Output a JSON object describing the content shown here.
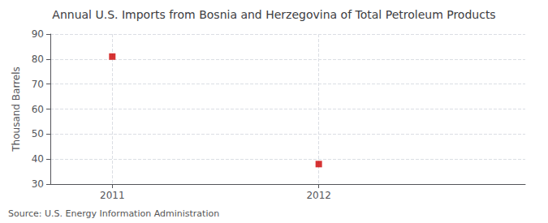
{
  "chart_data": {
    "type": "scatter",
    "title": "Annual U.S. Imports from Bosnia and Herzegovina of Total Petroleum Products",
    "ylabel": "Thousand Barrels",
    "annotation": "Source: U.S. Energy Information Administration",
    "x": [
      2011,
      2012
    ],
    "values": [
      81,
      38
    ],
    "color": "#cc0000",
    "marker": "square",
    "xlim": [
      2010.7,
      2013.0
    ],
    "xticks": [
      2011,
      2012
    ],
    "ylim": [
      30,
      90
    ],
    "yticks": [
      30,
      40,
      50,
      60,
      70,
      80,
      90
    ],
    "grid": true
  }
}
